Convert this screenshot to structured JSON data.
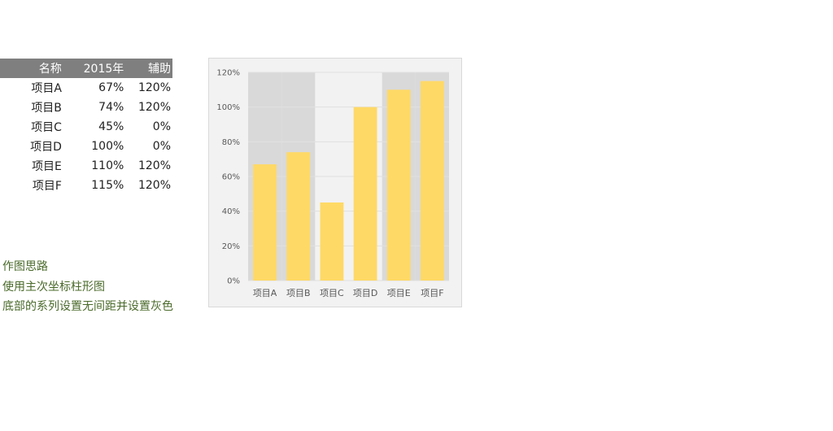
{
  "table": {
    "headers": [
      "名称",
      "2015年",
      "辅助"
    ],
    "rows": [
      [
        "项目A",
        "67%",
        "120%"
      ],
      [
        "项目B",
        "74%",
        "120%"
      ],
      [
        "项目C",
        "45%",
        "0%"
      ],
      [
        "项目D",
        "100%",
        "0%"
      ],
      [
        "项目E",
        "110%",
        "120%"
      ],
      [
        "项目F",
        "115%",
        "120%"
      ]
    ]
  },
  "notes": [
    "作图思路",
    "使用主次坐标柱形图",
    "底部的系列设置无间距并设置灰色"
  ],
  "chart_data": {
    "type": "bar",
    "categories": [
      "项目A",
      "项目B",
      "项目C",
      "项目D",
      "项目E",
      "项目F"
    ],
    "series": [
      {
        "name": "2015年",
        "values": [
          67,
          74,
          45,
          100,
          110,
          115
        ],
        "color": "#ffd966"
      },
      {
        "name": "辅助",
        "values": [
          120,
          120,
          0,
          0,
          120,
          120
        ],
        "color": "#d9d9d9"
      }
    ],
    "yticks": [
      "0%",
      "20%",
      "40%",
      "60%",
      "80%",
      "100%",
      "120%"
    ],
    "ylim": [
      0,
      120
    ],
    "grid": true,
    "plot_background": "#f2f2f2"
  }
}
